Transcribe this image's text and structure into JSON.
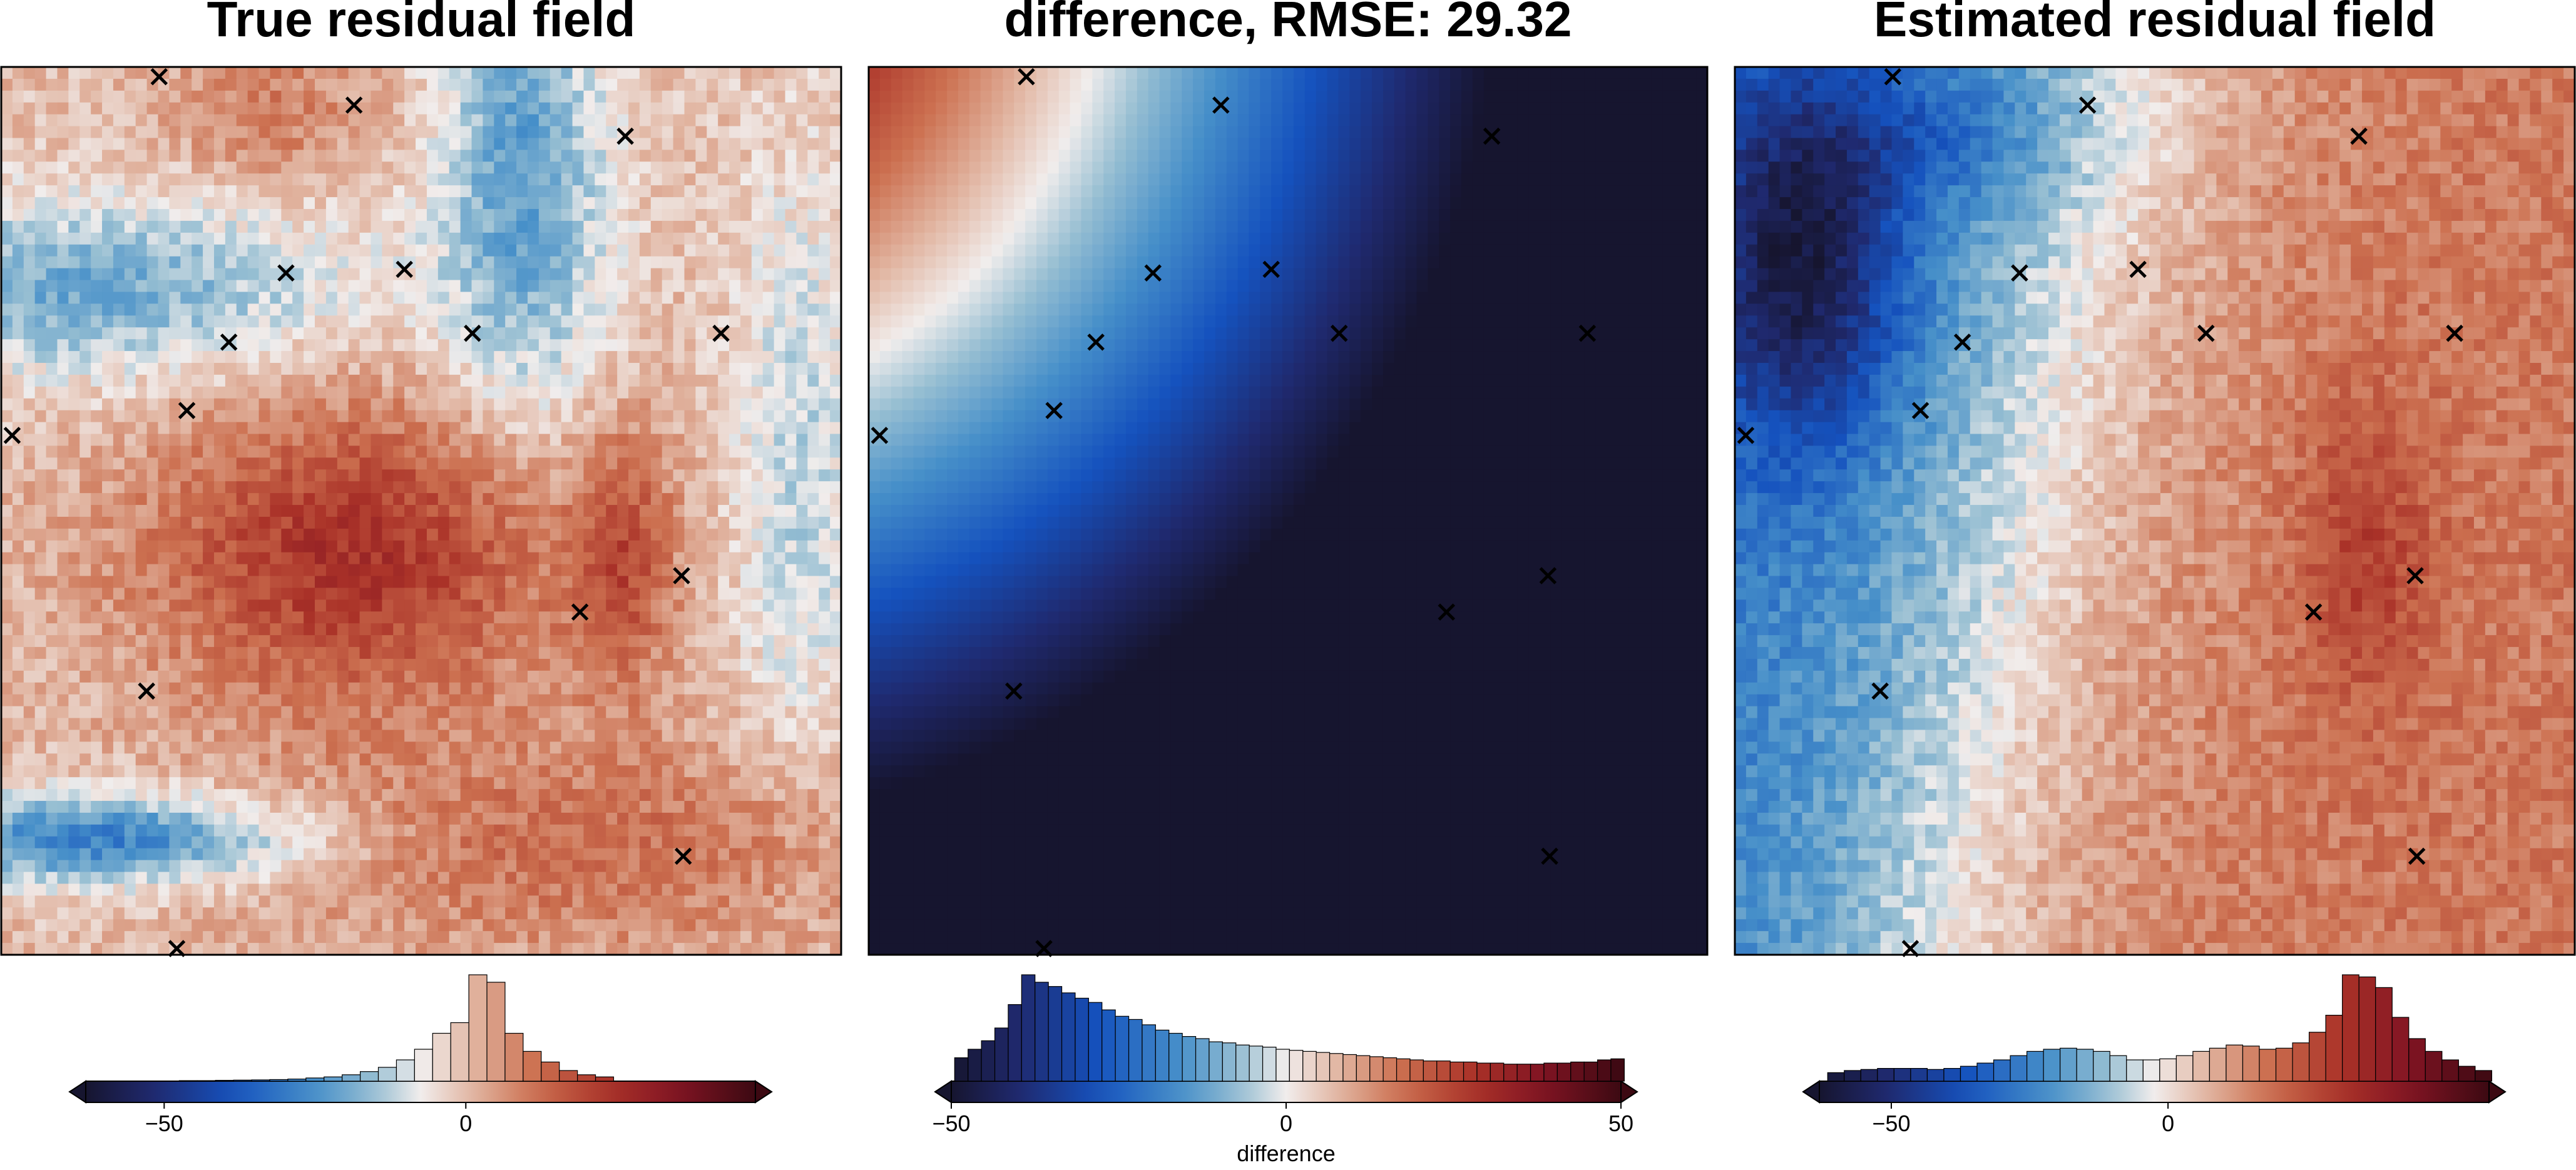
{
  "chart_data": [
    {
      "type": "heatmap",
      "title": "True residual field",
      "field": "true",
      "colormap": "balance",
      "grid": false,
      "colorbar": {
        "location": "bottom",
        "ticks": [
          -50,
          0
        ],
        "tick_labels": [
          "−50",
          "0"
        ],
        "range": [
          -63,
          48
        ],
        "label": "",
        "extend": "both",
        "histogram": true,
        "hist_bins": [
          {
            "x": -46,
            "h": 0.005
          },
          {
            "x": -43,
            "h": 0.005
          },
          {
            "x": -40,
            "h": 0.008
          },
          {
            "x": -37,
            "h": 0.01
          },
          {
            "x": -34,
            "h": 0.012
          },
          {
            "x": -31,
            "h": 0.015
          },
          {
            "x": -28,
            "h": 0.02
          },
          {
            "x": -25,
            "h": 0.03
          },
          {
            "x": -22,
            "h": 0.04
          },
          {
            "x": -19,
            "h": 0.06
          },
          {
            "x": -16,
            "h": 0.09
          },
          {
            "x": -13,
            "h": 0.13
          },
          {
            "x": -10,
            "h": 0.2
          },
          {
            "x": -7,
            "h": 0.3
          },
          {
            "x": -4,
            "h": 0.45
          },
          {
            "x": -1,
            "h": 0.55
          },
          {
            "x": 2,
            "h": 1.0
          },
          {
            "x": 5,
            "h": 0.93
          },
          {
            "x": 8,
            "h": 0.45
          },
          {
            "x": 11,
            "h": 0.28
          },
          {
            "x": 14,
            "h": 0.18
          },
          {
            "x": 17,
            "h": 0.1
          },
          {
            "x": 20,
            "h": 0.06
          },
          {
            "x": 23,
            "h": 0.04
          }
        ]
      }
    },
    {
      "type": "heatmap",
      "title": "difference, RMSE: 29.32",
      "field": "difference",
      "colormap": "balance",
      "grid": false,
      "colorbar": {
        "location": "bottom",
        "ticks": [
          -50,
          0,
          50
        ],
        "tick_labels": [
          "−50",
          "0",
          "50"
        ],
        "range": [
          -50,
          50
        ],
        "label": "difference",
        "extend": "both",
        "histogram": true,
        "hist_bins": [
          {
            "x": -48.5,
            "h": 0.22
          },
          {
            "x": -46.5,
            "h": 0.3
          },
          {
            "x": -44.5,
            "h": 0.38
          },
          {
            "x": -42.5,
            "h": 0.5
          },
          {
            "x": -40.5,
            "h": 0.72
          },
          {
            "x": -38.5,
            "h": 1.0
          },
          {
            "x": -36.5,
            "h": 0.93
          },
          {
            "x": -34.5,
            "h": 0.89
          },
          {
            "x": -32.5,
            "h": 0.83
          },
          {
            "x": -30.5,
            "h": 0.78
          },
          {
            "x": -28.5,
            "h": 0.74
          },
          {
            "x": -26.5,
            "h": 0.67
          },
          {
            "x": -24.5,
            "h": 0.61
          },
          {
            "x": -22.5,
            "h": 0.58
          },
          {
            "x": -20.5,
            "h": 0.53
          },
          {
            "x": -18.5,
            "h": 0.48
          },
          {
            "x": -16.5,
            "h": 0.45
          },
          {
            "x": -14.5,
            "h": 0.42
          },
          {
            "x": -12.5,
            "h": 0.4
          },
          {
            "x": -10.5,
            "h": 0.37
          },
          {
            "x": -8.5,
            "h": 0.36
          },
          {
            "x": -6.5,
            "h": 0.34
          },
          {
            "x": -4.5,
            "h": 0.33
          },
          {
            "x": -2.5,
            "h": 0.32
          },
          {
            "x": -0.5,
            "h": 0.3
          },
          {
            "x": 1.5,
            "h": 0.29
          },
          {
            "x": 3.5,
            "h": 0.28
          },
          {
            "x": 5.5,
            "h": 0.27
          },
          {
            "x": 7.5,
            "h": 0.26
          },
          {
            "x": 9.5,
            "h": 0.25
          },
          {
            "x": 11.5,
            "h": 0.24
          },
          {
            "x": 13.5,
            "h": 0.23
          },
          {
            "x": 15.5,
            "h": 0.22
          },
          {
            "x": 17.5,
            "h": 0.21
          },
          {
            "x": 19.5,
            "h": 0.2
          },
          {
            "x": 21.5,
            "h": 0.19
          },
          {
            "x": 23.5,
            "h": 0.19
          },
          {
            "x": 25.5,
            "h": 0.18
          },
          {
            "x": 27.5,
            "h": 0.18
          },
          {
            "x": 29.5,
            "h": 0.17
          },
          {
            "x": 31.5,
            "h": 0.17
          },
          {
            "x": 33.5,
            "h": 0.16
          },
          {
            "x": 35.5,
            "h": 0.16
          },
          {
            "x": 37.5,
            "h": 0.16
          },
          {
            "x": 39.5,
            "h": 0.17
          },
          {
            "x": 41.5,
            "h": 0.17
          },
          {
            "x": 43.5,
            "h": 0.18
          },
          {
            "x": 45.5,
            "h": 0.18
          },
          {
            "x": 47.5,
            "h": 0.2
          },
          {
            "x": 49.5,
            "h": 0.21
          }
        ]
      }
    },
    {
      "type": "heatmap",
      "title": "Estimated residual field",
      "field": "estimated",
      "colormap": "balance",
      "grid": false,
      "colorbar": {
        "location": "bottom",
        "ticks": [
          -50,
          0
        ],
        "tick_labels": [
          "−50",
          "0"
        ],
        "range": [
          -63,
          58
        ],
        "label": "",
        "extend": "both",
        "histogram": true,
        "hist_bins": [
          {
            "x": -60,
            "h": 0.08
          },
          {
            "x": -57,
            "h": 0.1
          },
          {
            "x": -54,
            "h": 0.11
          },
          {
            "x": -51,
            "h": 0.12
          },
          {
            "x": -48,
            "h": 0.12
          },
          {
            "x": -45,
            "h": 0.12
          },
          {
            "x": -42,
            "h": 0.11
          },
          {
            "x": -39,
            "h": 0.12
          },
          {
            "x": -36,
            "h": 0.14
          },
          {
            "x": -33,
            "h": 0.17
          },
          {
            "x": -30,
            "h": 0.2
          },
          {
            "x": -27,
            "h": 0.24
          },
          {
            "x": -24,
            "h": 0.28
          },
          {
            "x": -21,
            "h": 0.3
          },
          {
            "x": -18,
            "h": 0.31
          },
          {
            "x": -15,
            "h": 0.3
          },
          {
            "x": -12,
            "h": 0.28
          },
          {
            "x": -9,
            "h": 0.24
          },
          {
            "x": -6,
            "h": 0.2
          },
          {
            "x": -3,
            "h": 0.2
          },
          {
            "x": 0,
            "h": 0.21
          },
          {
            "x": 3,
            "h": 0.24
          },
          {
            "x": 6,
            "h": 0.28
          },
          {
            "x": 9,
            "h": 0.31
          },
          {
            "x": 12,
            "h": 0.34
          },
          {
            "x": 15,
            "h": 0.33
          },
          {
            "x": 18,
            "h": 0.3
          },
          {
            "x": 21,
            "h": 0.31
          },
          {
            "x": 24,
            "h": 0.36
          },
          {
            "x": 27,
            "h": 0.46
          },
          {
            "x": 30,
            "h": 0.62
          },
          {
            "x": 33,
            "h": 1.0
          },
          {
            "x": 36,
            "h": 0.98
          },
          {
            "x": 39,
            "h": 0.88
          },
          {
            "x": 42,
            "h": 0.6
          },
          {
            "x": 45,
            "h": 0.4
          },
          {
            "x": 48,
            "h": 0.28
          },
          {
            "x": 51,
            "h": 0.2
          },
          {
            "x": 54,
            "h": 0.14
          },
          {
            "x": 57,
            "h": 0.1
          }
        ]
      }
    }
  ],
  "control_points": [
    [
      0.188,
      0.011
    ],
    [
      0.42,
      0.043
    ],
    [
      0.743,
      0.078
    ],
    [
      0.339,
      0.232
    ],
    [
      0.48,
      0.228
    ],
    [
      0.271,
      0.31
    ],
    [
      0.561,
      0.3
    ],
    [
      0.857,
      0.3
    ],
    [
      0.221,
      0.387
    ],
    [
      0.013,
      0.415
    ],
    [
      0.81,
      0.573
    ],
    [
      0.689,
      0.614
    ],
    [
      0.173,
      0.703
    ],
    [
      0.812,
      0.889
    ],
    [
      0.209,
      0.993
    ]
  ],
  "marker_symbol": "x"
}
